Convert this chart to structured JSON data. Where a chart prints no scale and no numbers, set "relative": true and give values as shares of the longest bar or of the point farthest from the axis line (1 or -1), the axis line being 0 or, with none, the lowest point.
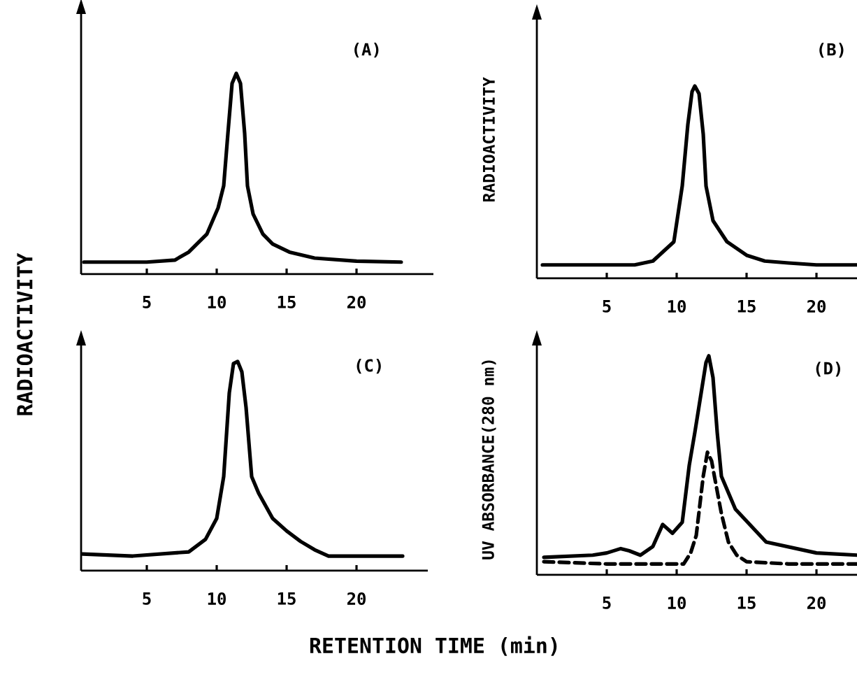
{
  "chart_data": [
    {
      "type": "line",
      "title": "(A)",
      "ylabel": "RADIOACTIVITY",
      "relative": true,
      "xlim": [
        0.3,
        25.5
      ],
      "xticks": [
        5,
        10,
        15,
        20
      ],
      "series": [
        {
          "color": "#000000",
          "x": [
            0.5,
            3,
            5,
            7,
            8,
            9.3,
            10.1,
            10.5,
            10.8,
            11.1,
            11.4,
            11.7,
            12,
            12.2,
            12.6,
            13.3,
            14,
            15.2,
            17,
            20,
            23.2
          ],
          "values": [
            0.06,
            0.06,
            0.06,
            0.07,
            0.11,
            0.2,
            0.33,
            0.44,
            0.7,
            0.95,
            1,
            0.95,
            0.7,
            0.44,
            0.3,
            0.2,
            0.15,
            0.11,
            0.08,
            0.065,
            0.06
          ]
        }
      ]
    },
    {
      "type": "line",
      "title": "(B)",
      "ylabel": "RADIOACTIVITY",
      "relative": true,
      "xlim": [
        0,
        22.9
      ],
      "xticks": [
        5,
        10,
        15,
        20
      ],
      "series": [
        {
          "color": "#000000",
          "x": [
            0.4,
            4,
            7,
            8.3,
            9.8,
            10.4,
            10.8,
            11.1,
            11.3,
            11.6,
            11.9,
            12.1,
            12.6,
            13.6,
            15,
            16.3,
            18,
            20,
            22.9
          ],
          "values": [
            0.07,
            0.07,
            0.07,
            0.09,
            0.19,
            0.48,
            0.8,
            0.97,
            1,
            0.96,
            0.75,
            0.48,
            0.3,
            0.19,
            0.12,
            0.09,
            0.08,
            0.07,
            0.07
          ]
        }
      ]
    },
    {
      "type": "line",
      "title": "(C)",
      "xlabel": "RETENTION TIME (min)",
      "relative": true,
      "xlim": [
        0.3,
        25.1
      ],
      "xticks": [
        5,
        10,
        15,
        20
      ],
      "series": [
        {
          "color": "#000000",
          "x": [
            0.4,
            4,
            8,
            9.2,
            10,
            10.5,
            10.9,
            11.2,
            11.5,
            11.8,
            12.1,
            12.5,
            13,
            14,
            15,
            16,
            17,
            18,
            20,
            23.3
          ],
          "values": [
            0.08,
            0.07,
            0.09,
            0.15,
            0.25,
            0.45,
            0.85,
            0.99,
            1,
            0.95,
            0.78,
            0.45,
            0.37,
            0.25,
            0.19,
            0.14,
            0.1,
            0.07,
            0.07,
            0.07
          ]
        }
      ]
    },
    {
      "type": "line",
      "title": "(D)",
      "ylabel": "UV ABSORBANCE(280 nm)",
      "relative": true,
      "xlim": [
        0,
        22.9
      ],
      "xticks": [
        5,
        10,
        15,
        20
      ],
      "series": [
        {
          "color": "#000000",
          "line_style": "solid",
          "x": [
            0.5,
            4,
            5,
            6,
            6.6,
            7.4,
            8.3,
            9.0,
            9.7,
            10.4,
            10.9,
            11.3,
            11.8,
            12.1,
            12.3,
            12.6,
            12.9,
            13.2,
            14.2,
            16.4,
            20,
            22.9
          ],
          "values": [
            0.08,
            0.09,
            0.1,
            0.12,
            0.11,
            0.09,
            0.13,
            0.23,
            0.19,
            0.24,
            0.5,
            0.65,
            0.85,
            0.97,
            1,
            0.9,
            0.65,
            0.45,
            0.3,
            0.15,
            0.1,
            0.09
          ]
        },
        {
          "color": "#000000",
          "line_style": "dashed",
          "x": [
            0.5,
            5,
            10.5,
            11,
            11.4,
            11.9,
            12.2,
            12.5,
            12.7,
            13.2,
            13.7,
            14.3,
            15,
            18,
            22.9
          ],
          "values": [
            0.06,
            0.05,
            0.05,
            0.1,
            0.18,
            0.45,
            0.56,
            0.52,
            0.45,
            0.28,
            0.15,
            0.09,
            0.06,
            0.05,
            0.05
          ]
        }
      ]
    }
  ]
}
